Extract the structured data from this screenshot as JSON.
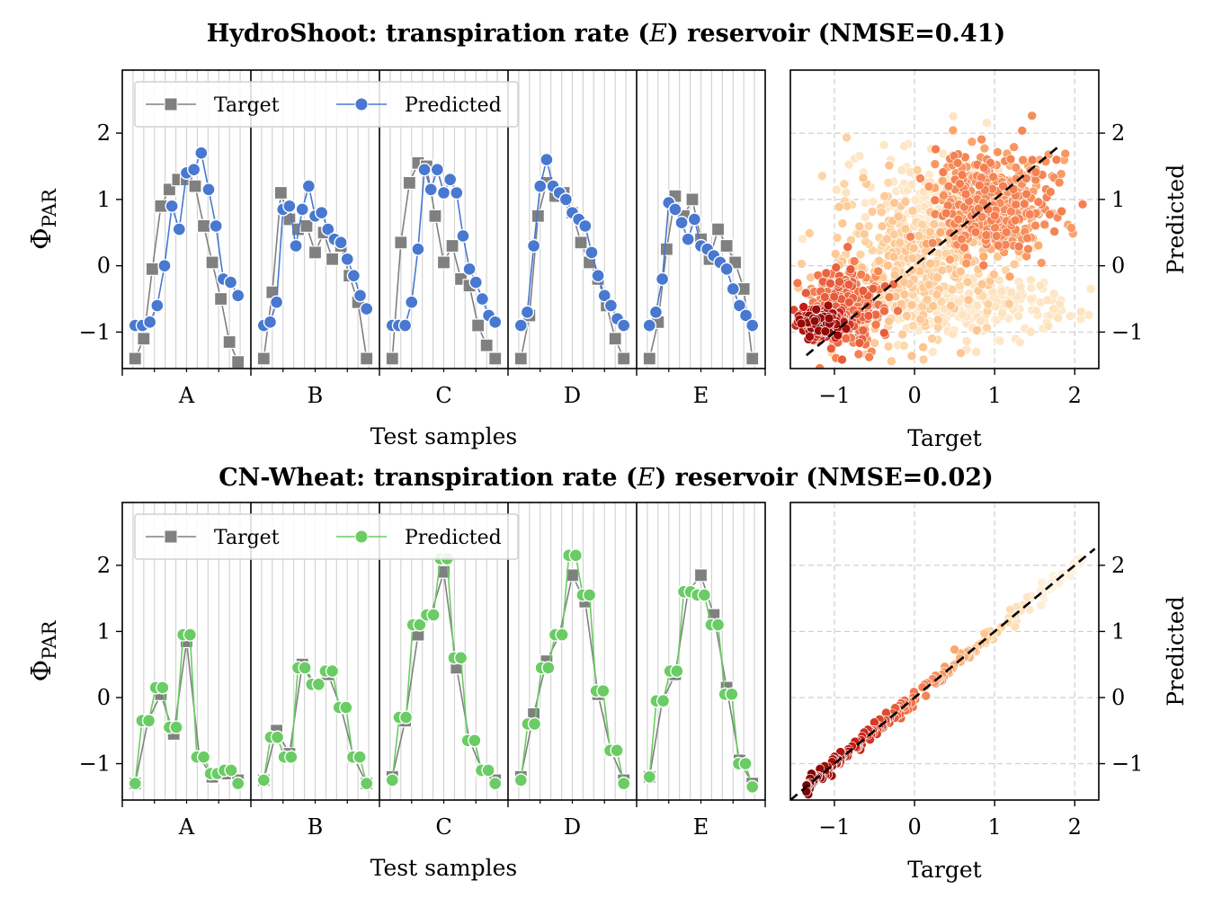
{
  "chart_data": [
    {
      "type": "line",
      "title": "HydroShoot: transpiration rate (E) reservoir (NMSE=0.41)",
      "title_parts": [
        "HydroShoot: transpiration rate (",
        "E",
        ") reservoir (NMSE=0.41)"
      ],
      "xlabel": "Test samples",
      "ylabel_main": "Φ",
      "ylabel_sub": "PAR",
      "ylim": [
        -1.55,
        2.95
      ],
      "yticks": [
        -1,
        0,
        1,
        2
      ],
      "ytick_labels": [
        "−1",
        "0",
        "1",
        "2"
      ],
      "grid": "vertical",
      "legend": "top-left",
      "categories": [
        "A",
        "B",
        "C",
        "D",
        "E"
      ],
      "series": [
        {
          "name": "Target",
          "marker": "square",
          "color": "#808080",
          "groups": [
            [
              -1.4,
              -1.1,
              -0.05,
              0.9,
              1.15,
              1.3,
              1.3,
              1.2,
              0.6,
              0.05,
              -0.5,
              -1.15,
              -1.45
            ],
            [
              -1.4,
              -0.4,
              1.1,
              0.7,
              0.55,
              0.6,
              0.2,
              0.5,
              0.1,
              0.3,
              -0.15,
              -0.55,
              -1.4
            ],
            [
              -1.4,
              0.35,
              1.25,
              1.55,
              1.5,
              0.75,
              0.05,
              0.3,
              -0.2,
              -0.3,
              -0.9,
              -1.2,
              -1.4
            ],
            [
              -1.4,
              -0.75,
              0.75,
              1.25,
              1.05,
              1.1,
              0.8,
              0.35,
              0.05,
              -0.2,
              -0.6,
              -1.1,
              -1.4
            ],
            [
              -1.4,
              -0.85,
              0.25,
              1.05,
              0.75,
              1.0,
              0.4,
              0.1,
              0.55,
              0.3,
              0.05,
              -0.35,
              -1.4
            ]
          ]
        },
        {
          "name": "Predicted",
          "marker": "circle",
          "color": "#4878d0",
          "groups": [
            [
              -0.9,
              -0.9,
              -0.85,
              -0.6,
              0.0,
              0.9,
              0.55,
              1.4,
              1.45,
              1.7,
              1.15,
              0.6,
              -0.2,
              -0.25,
              -0.45
            ],
            [
              -0.9,
              -0.85,
              -0.55,
              0.85,
              0.9,
              0.3,
              0.85,
              1.2,
              0.75,
              0.8,
              0.55,
              0.4,
              0.35,
              0.1,
              -0.15,
              -0.45,
              -0.65
            ],
            [
              -0.9,
              -0.9,
              -0.9,
              -0.55,
              0.25,
              1.45,
              1.15,
              1.45,
              1.1,
              1.3,
              1.1,
              0.45,
              -0.05,
              -0.25,
              -0.5,
              -0.75,
              -0.85
            ],
            [
              -0.9,
              -0.7,
              0.3,
              1.2,
              1.6,
              1.2,
              1.1,
              1.0,
              0.8,
              0.7,
              0.6,
              0.2,
              -0.15,
              -0.45,
              -0.6,
              -0.8,
              -0.9
            ],
            [
              -0.9,
              -0.7,
              -0.2,
              0.95,
              0.85,
              0.65,
              0.4,
              0.7,
              0.3,
              0.25,
              0.15,
              0.05,
              -0.05,
              -0.35,
              -0.6,
              -0.75,
              -0.9
            ]
          ]
        }
      ]
    },
    {
      "type": "scatter",
      "xlabel": "Target",
      "ylabel": "Predicted",
      "xlim": [
        -1.55,
        2.3
      ],
      "ylim": [
        -1.55,
        2.95
      ],
      "xticks": [
        -1,
        0,
        1,
        2
      ],
      "xtick_labels": [
        "−1",
        "0",
        "1",
        "2"
      ],
      "yticks": [
        -1,
        0,
        1,
        2
      ],
      "ytick_labels": [
        "−1",
        "0",
        "1",
        "2"
      ],
      "grid": "dashed",
      "colormap": "OrRd (density)",
      "identity_line": [
        [
          -1.35,
          -1.35
        ],
        [
          1.8,
          1.8
        ]
      ],
      "clusters": [
        {
          "cx": -1.2,
          "cy": -0.85,
          "sx": 0.12,
          "sy": 0.09,
          "n": 360,
          "level": 0.95
        },
        {
          "cx": -0.9,
          "cy": -0.6,
          "sx": 0.25,
          "sy": 0.28,
          "n": 320,
          "level": 0.65
        },
        {
          "cx": 0.0,
          "cy": 0.0,
          "sx": 0.55,
          "sy": 0.55,
          "n": 360,
          "level": 0.3
        },
        {
          "cx": 1.0,
          "cy": 0.9,
          "sx": 0.35,
          "sy": 0.4,
          "n": 480,
          "level": 0.55
        },
        {
          "cx": 0.7,
          "cy": -0.6,
          "sx": 0.6,
          "sy": 0.25,
          "n": 220,
          "level": 0.15
        },
        {
          "cx": 0.3,
          "cy": 1.0,
          "sx": 0.5,
          "sy": 0.35,
          "n": 180,
          "level": 0.15
        }
      ]
    },
    {
      "type": "line",
      "title": "CN-Wheat: transpiration rate (E) reservoir (NMSE=0.02)",
      "title_parts": [
        "CN-Wheat: transpiration rate (",
        "E",
        ") reservoir (NMSE=0.02)"
      ],
      "xlabel": "Test samples",
      "ylabel_main": "Φ",
      "ylabel_sub": "PAR",
      "ylim": [
        -1.55,
        2.95
      ],
      "yticks": [
        -1,
        0,
        1,
        2
      ],
      "ytick_labels": [
        "−1",
        "0",
        "1",
        "2"
      ],
      "grid": "vertical",
      "legend": "top-left",
      "categories": [
        "A",
        "B",
        "C",
        "D",
        "E"
      ],
      "series": [
        {
          "name": "Target",
          "marker": "square",
          "color": "#808080",
          "groups": [
            [
              -1.3,
              -0.35,
              0.05,
              -0.55,
              0.85,
              -0.9,
              -1.2,
              -1.15,
              -1.25
            ],
            [
              -1.25,
              -0.5,
              -0.85,
              0.5,
              0.2,
              0.35,
              -0.15,
              -0.9,
              -1.3
            ],
            [
              -1.2,
              -0.35,
              0.95,
              1.25,
              1.9,
              0.45,
              -0.65,
              -1.1,
              -1.25
            ],
            [
              -1.2,
              -0.25,
              0.55,
              0.95,
              1.85,
              1.45,
              0.05,
              -0.8,
              -1.25
            ],
            [
              -1.2,
              -0.05,
              0.35,
              1.6,
              1.85,
              1.25,
              0.15,
              -0.95,
              -1.3
            ]
          ]
        },
        {
          "name": "Predicted",
          "marker": "circle",
          "color": "#6acc64",
          "groups": [
            [
              -1.3,
              -0.35,
              -0.35,
              0.15,
              0.15,
              -0.45,
              -0.45,
              0.95,
              0.95,
              -0.9,
              -0.9,
              -1.15,
              -1.15,
              -1.1,
              -1.1,
              -1.3
            ],
            [
              -1.25,
              -0.6,
              -0.6,
              -0.9,
              -0.9,
              0.45,
              0.45,
              0.2,
              0.2,
              0.4,
              0.4,
              -0.15,
              -0.15,
              -0.9,
              -0.9,
              -1.3
            ],
            [
              -1.25,
              -0.3,
              -0.3,
              1.1,
              1.1,
              1.25,
              1.25,
              2.1,
              2.1,
              0.6,
              0.6,
              -0.65,
              -0.65,
              -1.1,
              -1.1,
              -1.3
            ],
            [
              -1.25,
              -0.4,
              -0.4,
              0.45,
              0.45,
              0.95,
              0.95,
              2.15,
              2.15,
              1.55,
              1.55,
              0.1,
              0.1,
              -0.8,
              -0.8,
              -1.3
            ],
            [
              -1.2,
              -0.05,
              -0.05,
              0.4,
              0.4,
              1.6,
              1.6,
              1.55,
              1.55,
              1.1,
              1.1,
              0.05,
              0.05,
              -1.0,
              -1.0,
              -1.35
            ]
          ]
        }
      ]
    },
    {
      "type": "scatter",
      "xlabel": "Target",
      "ylabel": "Predicted",
      "xlim": [
        -1.55,
        2.3
      ],
      "ylim": [
        -1.55,
        2.95
      ],
      "xticks": [
        -1,
        0,
        1,
        2
      ],
      "xtick_labels": [
        "−1",
        "0",
        "1",
        "2"
      ],
      "yticks": [
        -1,
        0,
        1,
        2
      ],
      "ytick_labels": [
        "−1",
        "0",
        "1",
        "2"
      ],
      "grid": "dashed",
      "colormap": "OrRd (density)",
      "identity_line": [
        [
          -1.55,
          -1.55
        ],
        [
          2.25,
          2.25
        ]
      ],
      "diagonal_points": {
        "x_from": -1.35,
        "x_to": 2.1,
        "n": 260,
        "spread": 0.06
      }
    }
  ]
}
